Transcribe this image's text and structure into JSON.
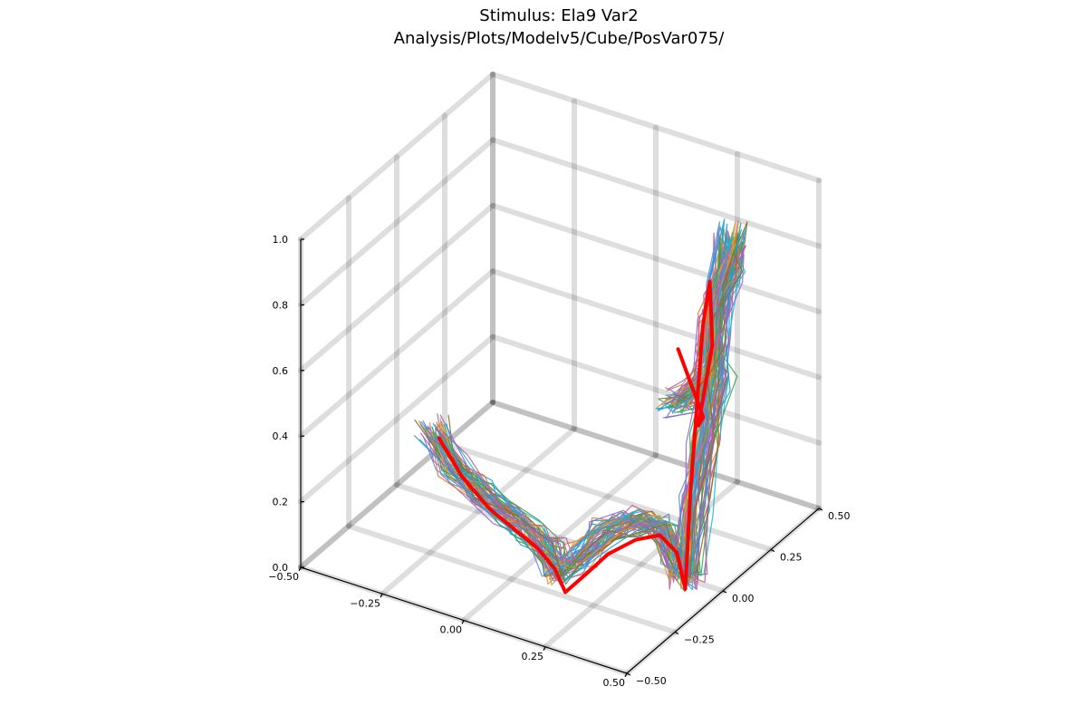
{
  "chart_data": {
    "type": "line3d",
    "title_lines": [
      "Stimulus: Ela9 Var2",
      "Analysis/Plots/Modelv5/Cube/PosVar075/"
    ],
    "axes": {
      "x": {
        "range": [
          -0.5,
          0.5
        ],
        "ticks": [
          "−0.50",
          "−0.25",
          "0.00",
          "0.25",
          "0.50"
        ]
      },
      "y": {
        "range": [
          -0.5,
          0.5
        ],
        "ticks": [
          "−0.50",
          "−0.25",
          "0.00",
          "0.25",
          "0.50"
        ]
      },
      "z": {
        "range": [
          0.0,
          1.0
        ],
        "ticks": [
          "0.0",
          "0.2",
          "0.4",
          "0.6",
          "0.8",
          "1.0"
        ]
      }
    },
    "grid": true,
    "legend": "none",
    "reference_path": {
      "color": "#ff0000",
      "points": [
        [
          -0.4,
          0.05,
          0.15
        ],
        [
          -0.3,
          0.0,
          0.09
        ],
        [
          -0.18,
          -0.06,
          0.06
        ],
        [
          -0.06,
          -0.12,
          0.06
        ],
        [
          0.04,
          -0.18,
          0.07
        ],
        [
          0.12,
          -0.23,
          0.06
        ],
        [
          0.17,
          -0.26,
          0.02
        ],
        [
          0.22,
          -0.24,
          0.08
        ],
        [
          0.26,
          -0.19,
          0.13
        ],
        [
          0.31,
          -0.13,
          0.16
        ],
        [
          0.36,
          -0.09,
          0.17
        ],
        [
          0.4,
          -0.07,
          0.12
        ],
        [
          0.42,
          -0.06,
          0.01
        ],
        [
          0.43,
          -0.05,
          0.3
        ],
        [
          0.45,
          -0.02,
          0.8
        ],
        [
          0.46,
          0.0,
          0.93
        ],
        [
          0.35,
          0.2,
          0.6
        ],
        [
          0.23,
          0.33,
          0.25
        ],
        [
          0.21,
          0.39,
          0.24
        ],
        [
          0.08,
          0.48,
          0.36
        ]
      ]
    },
    "trial_paths": {
      "count": 60,
      "palette": [
        "#1f9bd8",
        "#e37d30",
        "#3aa653",
        "#c4599f",
        "#8e6ad0",
        "#8a6f2a",
        "#17becf",
        "#d1a13a",
        "#5a8fd6"
      ],
      "mean_points": [
        [
          -0.42,
          0.05,
          0.17
        ],
        [
          -0.33,
          0.0,
          0.12
        ],
        [
          -0.22,
          -0.05,
          0.1
        ],
        [
          -0.1,
          -0.1,
          0.09
        ],
        [
          0.0,
          -0.15,
          0.09
        ],
        [
          0.08,
          -0.2,
          0.09
        ],
        [
          0.14,
          -0.24,
          0.06
        ],
        [
          0.2,
          -0.22,
          0.12
        ],
        [
          0.24,
          -0.18,
          0.18
        ],
        [
          0.3,
          -0.15,
          0.22
        ],
        [
          0.34,
          -0.12,
          0.22
        ],
        [
          0.38,
          -0.1,
          0.2
        ],
        [
          0.41,
          -0.08,
          0.08
        ],
        [
          0.43,
          -0.06,
          0.05
        ],
        [
          0.44,
          -0.05,
          0.25
        ],
        [
          0.46,
          -0.03,
          0.45
        ],
        [
          0.47,
          0.01,
          0.62
        ],
        [
          0.46,
          0.04,
          0.72
        ],
        [
          0.45,
          0.07,
          0.86
        ],
        [
          0.47,
          0.1,
          1.02
        ],
        [
          0.42,
          0.17,
          0.87
        ],
        [
          0.33,
          0.23,
          0.65
        ],
        [
          0.28,
          0.29,
          0.44
        ],
        [
          0.2,
          0.33,
          0.33
        ],
        [
          0.13,
          0.36,
          0.27
        ]
      ],
      "spread": 0.03
    }
  }
}
